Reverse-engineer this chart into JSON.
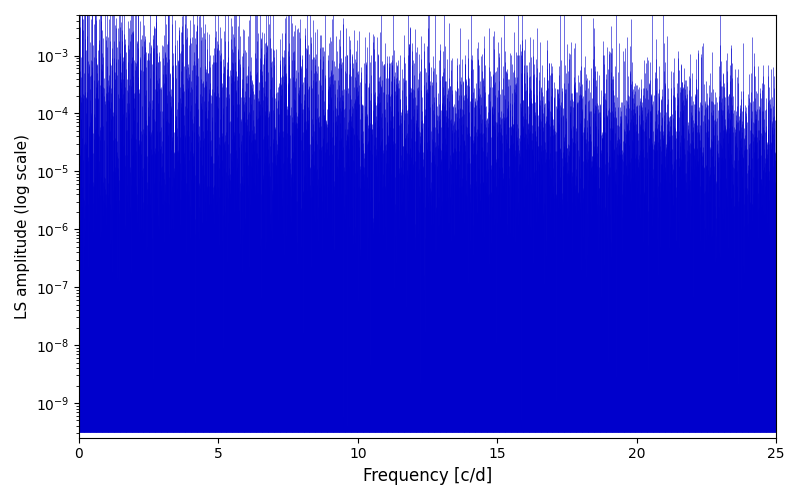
{
  "title": "",
  "xlabel": "Frequency [c/d]",
  "ylabel": "LS amplitude (log scale)",
  "line_color": "#0000cc",
  "xlim": [
    0,
    25
  ],
  "ylim_low": -9.6,
  "ylim_high": -2.3,
  "background_color": "#ffffff",
  "seed": 12345,
  "n_frequencies": 5000,
  "freq_max": 25.0,
  "base_amp_low": 0.003,
  "base_amp_high": 0.0001,
  "floor_log_mean": -4.8,
  "floor_log_std": 0.8,
  "linewidth": 0.4
}
